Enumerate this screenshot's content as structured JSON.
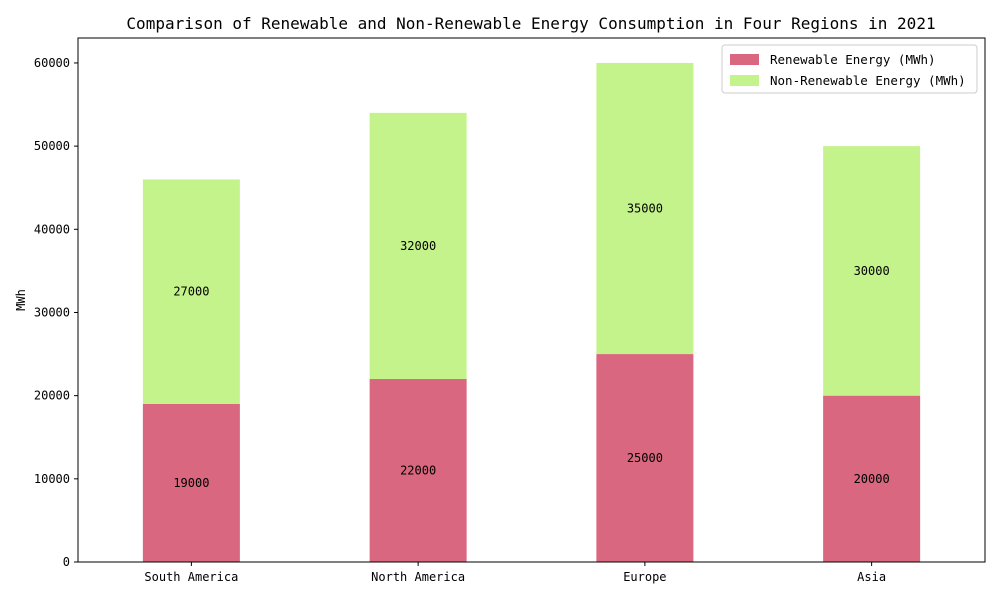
{
  "chart_data": {
    "type": "bar",
    "stacked": true,
    "title": "Comparison of Renewable and Non-Renewable Energy Consumption in Four Regions in 2021",
    "xlabel": "",
    "ylabel": "MWh",
    "ylim": [
      0,
      63000
    ],
    "yticks": [
      0,
      10000,
      20000,
      30000,
      40000,
      50000,
      60000
    ],
    "categories": [
      "South America",
      "North America",
      "Europe",
      "Asia"
    ],
    "series": [
      {
        "name": "Renewable Energy (MWh)",
        "values": [
          19000,
          22000,
          25000,
          20000
        ],
        "color": "#d9677f"
      },
      {
        "name": "Non-Renewable Energy (MWh)",
        "values": [
          27000,
          32000,
          35000,
          30000
        ],
        "color": "#c5f38b"
      }
    ],
    "grid": false,
    "legend_position": "top-right"
  }
}
